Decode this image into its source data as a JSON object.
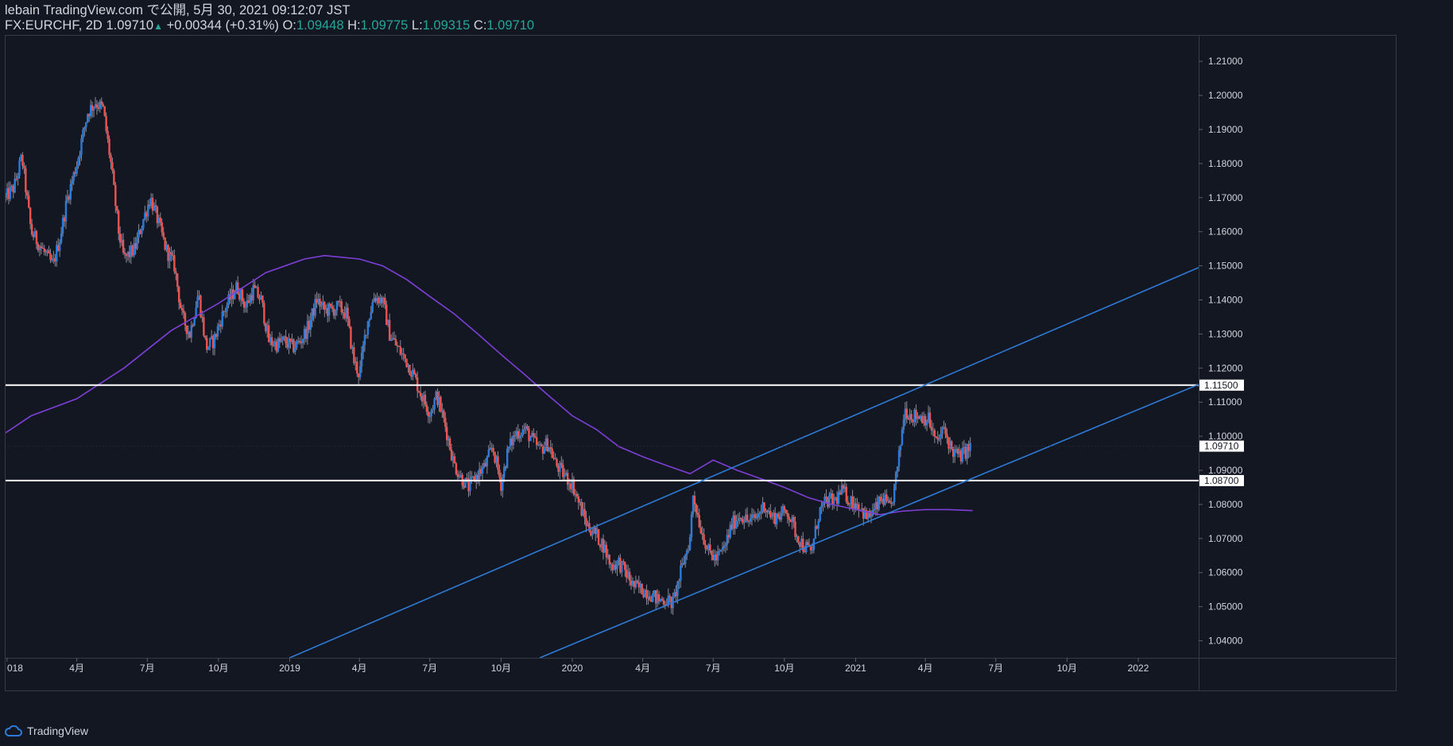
{
  "header": {
    "line1": "lebain TradingView.com で公開, 5月 30, 2021 09:12:07 JST",
    "symbol": "FX:EURCHF, 2D",
    "last": "1.09710",
    "arrow": "▲",
    "change": "+0.00344 (+0.31%)",
    "o_label": "O:",
    "o_value": "1.09448",
    "h_label": "H:",
    "h_value": "1.09775",
    "l_label": "L:",
    "l_value": "1.09315",
    "c_label": "C:",
    "c_value": "1.09710"
  },
  "footer": {
    "brand": "TradingView",
    "logo_icon": "tradingview-cloud-icon"
  },
  "colors": {
    "background": "#131722",
    "grid": "#1e2230",
    "up": "#2a7cdb",
    "down": "#ef5350",
    "wick": "#8e8a9a",
    "ma": "#7e3fd8",
    "trendline": "#2e7ad6",
    "hline": "#ffffff",
    "axis_text": "#d1d4dc"
  },
  "chart_data": {
    "type": "candlestick",
    "symbol": "FX:EURCHF",
    "timeframe": "2D",
    "ylim": [
      1.035,
      1.2175
    ],
    "y_ticks": [
      "1.21000",
      "1.20000",
      "1.19000",
      "1.18000",
      "1.17000",
      "1.16000",
      "1.15000",
      "1.14000",
      "1.13000",
      "1.12000",
      "1.11000",
      "1.10000",
      "1.09000",
      "1.08000",
      "1.07000",
      "1.06000",
      "1.05000",
      "1.04000"
    ],
    "x_ticks": [
      {
        "label": "018",
        "date": "2018-01-01"
      },
      {
        "label": "4月",
        "date": "2018-04-01"
      },
      {
        "label": "7月",
        "date": "2018-07-01"
      },
      {
        "label": "10月",
        "date": "2018-10-01"
      },
      {
        "label": "2019",
        "date": "2019-01-01"
      },
      {
        "label": "4月",
        "date": "2019-04-01"
      },
      {
        "label": "7月",
        "date": "2019-07-01"
      },
      {
        "label": "10月",
        "date": "2019-10-01"
      },
      {
        "label": "2020",
        "date": "2020-01-01"
      },
      {
        "label": "4月",
        "date": "2020-04-01"
      },
      {
        "label": "7月",
        "date": "2020-07-01"
      },
      {
        "label": "10月",
        "date": "2020-10-01"
      },
      {
        "label": "2021",
        "date": "2021-01-01"
      },
      {
        "label": "4月",
        "date": "2021-04-01"
      },
      {
        "label": "7月",
        "date": "2021-07-01"
      },
      {
        "label": "10月",
        "date": "2021-10-01"
      },
      {
        "label": "2022",
        "date": "2022-01-01"
      }
    ],
    "x_range": [
      "2017-12-30",
      "2022-03-20"
    ],
    "price_path": [
      [
        "2017-12-30",
        1.17
      ],
      [
        "2018-01-10",
        1.173
      ],
      [
        "2018-01-20",
        1.182
      ],
      [
        "2018-02-01",
        1.16
      ],
      [
        "2018-02-15",
        1.155
      ],
      [
        "2018-03-01",
        1.15
      ],
      [
        "2018-03-10",
        1.158
      ],
      [
        "2018-03-20",
        1.17
      ],
      [
        "2018-04-01",
        1.18
      ],
      [
        "2018-04-15",
        1.195
      ],
      [
        "2018-04-25",
        1.198
      ],
      [
        "2018-05-05",
        1.196
      ],
      [
        "2018-05-15",
        1.18
      ],
      [
        "2018-05-25",
        1.16
      ],
      [
        "2018-06-01",
        1.152
      ],
      [
        "2018-06-15",
        1.155
      ],
      [
        "2018-06-25",
        1.163
      ],
      [
        "2018-07-05",
        1.17
      ],
      [
        "2018-07-15",
        1.163
      ],
      [
        "2018-07-25",
        1.155
      ],
      [
        "2018-08-05",
        1.15
      ],
      [
        "2018-08-15",
        1.135
      ],
      [
        "2018-08-25",
        1.13
      ],
      [
        "2018-09-05",
        1.142
      ],
      [
        "2018-09-15",
        1.126
      ],
      [
        "2018-09-25",
        1.128
      ],
      [
        "2018-10-05",
        1.135
      ],
      [
        "2018-10-15",
        1.14
      ],
      [
        "2018-10-25",
        1.144
      ],
      [
        "2018-11-05",
        1.138
      ],
      [
        "2018-11-15",
        1.143
      ],
      [
        "2018-11-25",
        1.14
      ],
      [
        "2018-12-05",
        1.128
      ],
      [
        "2018-12-15",
        1.127
      ],
      [
        "2018-12-25",
        1.128
      ],
      [
        "2019-01-05",
        1.126
      ],
      [
        "2019-01-15",
        1.128
      ],
      [
        "2019-01-25",
        1.132
      ],
      [
        "2019-02-05",
        1.14
      ],
      [
        "2019-02-15",
        1.137
      ],
      [
        "2019-02-25",
        1.137
      ],
      [
        "2019-03-05",
        1.138
      ],
      [
        "2019-03-15",
        1.136
      ],
      [
        "2019-03-25",
        1.122
      ],
      [
        "2019-04-01",
        1.118
      ],
      [
        "2019-04-10",
        1.132
      ],
      [
        "2019-04-20",
        1.141
      ],
      [
        "2019-05-01",
        1.14
      ],
      [
        "2019-05-10",
        1.13
      ],
      [
        "2019-05-20",
        1.126
      ],
      [
        "2019-06-01",
        1.122
      ],
      [
        "2019-06-10",
        1.118
      ],
      [
        "2019-06-20",
        1.112
      ],
      [
        "2019-07-01",
        1.107
      ],
      [
        "2019-07-10",
        1.112
      ],
      [
        "2019-07-20",
        1.104
      ],
      [
        "2019-08-01",
        1.092
      ],
      [
        "2019-08-10",
        1.088
      ],
      [
        "2019-08-20",
        1.085
      ],
      [
        "2019-09-01",
        1.089
      ],
      [
        "2019-09-10",
        1.091
      ],
      [
        "2019-09-20",
        1.097
      ],
      [
        "2019-10-01",
        1.086
      ],
      [
        "2019-10-10",
        1.096
      ],
      [
        "2019-10-20",
        1.101
      ],
      [
        "2019-11-01",
        1.102
      ],
      [
        "2019-11-10",
        1.099
      ],
      [
        "2019-11-20",
        1.096
      ],
      [
        "2019-12-01",
        1.098
      ],
      [
        "2019-12-10",
        1.092
      ],
      [
        "2019-12-20",
        1.089
      ],
      [
        "2020-01-01",
        1.086
      ],
      [
        "2020-01-10",
        1.08
      ],
      [
        "2020-01-20",
        1.074
      ],
      [
        "2020-02-01",
        1.071
      ],
      [
        "2020-02-10",
        1.068
      ],
      [
        "2020-02-20",
        1.062
      ],
      [
        "2020-03-01",
        1.063
      ],
      [
        "2020-03-10",
        1.06
      ],
      [
        "2020-03-20",
        1.056
      ],
      [
        "2020-04-01",
        1.055
      ],
      [
        "2020-04-10",
        1.054
      ],
      [
        "2020-04-20",
        1.052
      ],
      [
        "2020-05-01",
        1.052
      ],
      [
        "2020-05-10",
        1.051
      ],
      [
        "2020-05-20",
        1.06
      ],
      [
        "2020-06-01",
        1.07
      ],
      [
        "2020-06-05",
        1.083
      ],
      [
        "2020-06-15",
        1.073
      ],
      [
        "2020-06-25",
        1.066
      ],
      [
        "2020-07-05",
        1.064
      ],
      [
        "2020-07-15",
        1.067
      ],
      [
        "2020-07-25",
        1.074
      ],
      [
        "2020-08-05",
        1.077
      ],
      [
        "2020-08-15",
        1.075
      ],
      [
        "2020-08-25",
        1.076
      ],
      [
        "2020-09-05",
        1.08
      ],
      [
        "2020-09-15",
        1.076
      ],
      [
        "2020-09-25",
        1.077
      ],
      [
        "2020-10-05",
        1.078
      ],
      [
        "2020-10-15",
        1.072
      ],
      [
        "2020-10-25",
        1.068
      ],
      [
        "2020-11-05",
        1.066
      ],
      [
        "2020-11-15",
        1.078
      ],
      [
        "2020-11-25",
        1.081
      ],
      [
        "2020-12-05",
        1.081
      ],
      [
        "2020-12-15",
        1.084
      ],
      [
        "2020-12-25",
        1.081
      ],
      [
        "2021-01-05",
        1.08
      ],
      [
        "2021-01-15",
        1.076
      ],
      [
        "2021-01-25",
        1.078
      ],
      [
        "2021-02-05",
        1.082
      ],
      [
        "2021-02-15",
        1.078
      ],
      [
        "2021-02-25",
        1.092
      ],
      [
        "2021-03-05",
        1.108
      ],
      [
        "2021-03-15",
        1.106
      ],
      [
        "2021-03-25",
        1.106
      ],
      [
        "2021-04-05",
        1.105
      ],
      [
        "2021-04-15",
        1.098
      ],
      [
        "2021-04-25",
        1.102
      ],
      [
        "2021-05-05",
        1.096
      ],
      [
        "2021-05-15",
        1.094
      ],
      [
        "2021-05-25",
        1.096
      ],
      [
        "2021-05-30",
        1.0971
      ]
    ],
    "moving_average": [
      [
        "2017-12-30",
        1.101
      ],
      [
        "2018-02-01",
        1.106
      ],
      [
        "2018-04-01",
        1.111
      ],
      [
        "2018-06-01",
        1.12
      ],
      [
        "2018-08-01",
        1.131
      ],
      [
        "2018-10-01",
        1.139
      ],
      [
        "2018-12-01",
        1.148
      ],
      [
        "2019-01-20",
        1.152
      ],
      [
        "2019-02-15",
        1.153
      ],
      [
        "2019-04-01",
        1.152
      ],
      [
        "2019-05-01",
        1.15
      ],
      [
        "2019-06-01",
        1.146
      ],
      [
        "2019-07-01",
        1.141
      ],
      [
        "2019-08-01",
        1.136
      ],
      [
        "2019-09-01",
        1.13
      ],
      [
        "2019-10-01",
        1.124
      ],
      [
        "2019-11-01",
        1.118
      ],
      [
        "2019-12-01",
        1.112
      ],
      [
        "2020-01-01",
        1.106
      ],
      [
        "2020-02-01",
        1.102
      ],
      [
        "2020-03-01",
        1.097
      ],
      [
        "2020-04-01",
        1.094
      ],
      [
        "2020-05-01",
        1.0915
      ],
      [
        "2020-06-01",
        1.089
      ],
      [
        "2020-07-01",
        1.093
      ],
      [
        "2020-08-01",
        1.09
      ],
      [
        "2020-09-01",
        1.0875
      ],
      [
        "2020-10-01",
        1.085
      ],
      [
        "2020-11-01",
        1.082
      ],
      [
        "2020-12-01",
        1.08
      ],
      [
        "2021-01-01",
        1.0785
      ],
      [
        "2021-02-01",
        1.077
      ],
      [
        "2021-03-01",
        1.078
      ],
      [
        "2021-04-01",
        1.0785
      ],
      [
        "2021-05-01",
        1.0785
      ],
      [
        "2021-06-01",
        1.0782
      ]
    ],
    "horizontal_lines": [
      {
        "value": 1.115,
        "label": "1.11500"
      },
      {
        "value": 1.087,
        "label": "1.08700"
      }
    ],
    "last_price": {
      "value": 1.0971,
      "label": "1.09710"
    },
    "trendlines": [
      {
        "name": "channel-upper",
        "from": [
          "2019-01-01",
          1.035
        ],
        "to": [
          "2022-03-20",
          1.1495
        ]
      },
      {
        "name": "channel-lower",
        "from": [
          "2019-11-20",
          1.035
        ],
        "to": [
          "2022-03-20",
          1.1152
        ]
      }
    ]
  }
}
